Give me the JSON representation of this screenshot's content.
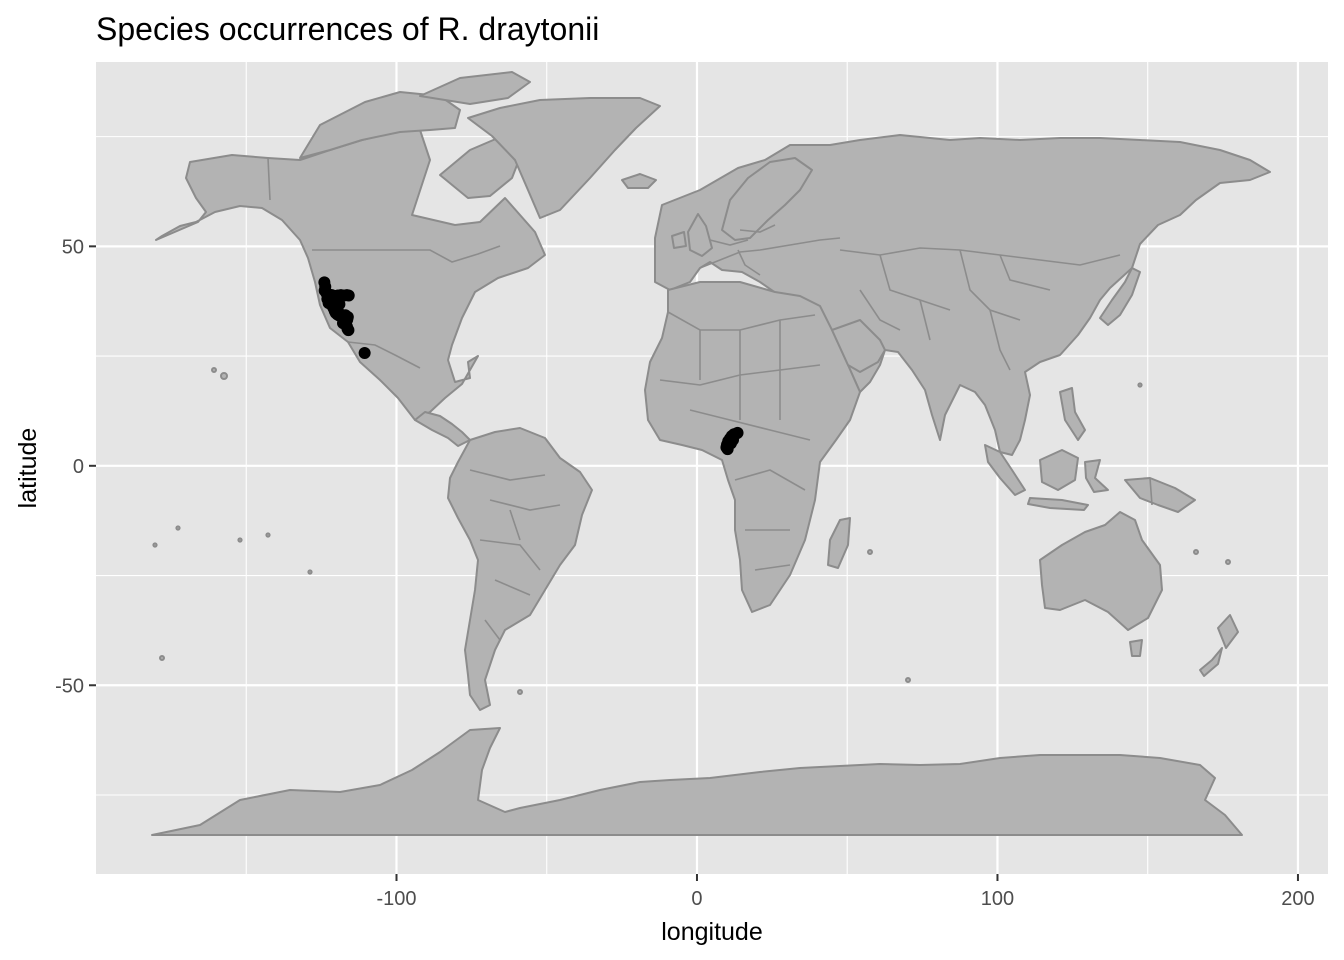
{
  "chart_data": {
    "type": "scatter",
    "title": "Species occurrences of R. draytonii",
    "xlabel": "longitude",
    "ylabel": "latitude",
    "xlim": [
      -200,
      210
    ],
    "ylim": [
      -93,
      92
    ],
    "x_ticks": [
      -100,
      0,
      100,
      200
    ],
    "x_tick_labels": [
      "-100",
      "0",
      "100",
      "200"
    ],
    "y_ticks": [
      -50,
      0,
      50
    ],
    "y_tick_labels": [
      "-50",
      "0",
      "50"
    ],
    "grid": true,
    "legend": "none",
    "background": "world-map",
    "panel_color": "#e5e5e5",
    "land_color": "#b3b3b3",
    "land_border_color": "#8c8c8c",
    "point_color": "#000000",
    "points": [
      {
        "x": -124,
        "y": 41.8
      },
      {
        "x": -123.7,
        "y": 40.8
      },
      {
        "x": -123.9,
        "y": 39.9
      },
      {
        "x": -123.3,
        "y": 39.3
      },
      {
        "x": -122.8,
        "y": 38.6
      },
      {
        "x": -122.5,
        "y": 37.9
      },
      {
        "x": -122.2,
        "y": 37.6
      },
      {
        "x": -121.9,
        "y": 37.2
      },
      {
        "x": -121.7,
        "y": 36.8
      },
      {
        "x": -121.3,
        "y": 36.4
      },
      {
        "x": -121.0,
        "y": 36.0
      },
      {
        "x": -120.7,
        "y": 35.6
      },
      {
        "x": -120.5,
        "y": 35.2
      },
      {
        "x": -120.2,
        "y": 34.8
      },
      {
        "x": -119.7,
        "y": 34.5
      },
      {
        "x": -119.2,
        "y": 34.3
      },
      {
        "x": -118.7,
        "y": 34.2
      },
      {
        "x": -118.2,
        "y": 34.0
      },
      {
        "x": -117.9,
        "y": 33.7
      },
      {
        "x": -117.6,
        "y": 33.4
      },
      {
        "x": -117.3,
        "y": 33.0
      },
      {
        "x": -117.1,
        "y": 32.6
      },
      {
        "x": -116.8,
        "y": 32.2
      },
      {
        "x": -116.5,
        "y": 31.7
      },
      {
        "x": -116.3,
        "y": 31.2
      },
      {
        "x": -116.0,
        "y": 30.9
      },
      {
        "x": -122.3,
        "y": 39.0
      },
      {
        "x": -121.8,
        "y": 38.2
      },
      {
        "x": -121.2,
        "y": 37.5
      },
      {
        "x": -120.8,
        "y": 36.9
      },
      {
        "x": -120.3,
        "y": 36.2
      },
      {
        "x": -119.8,
        "y": 35.5
      },
      {
        "x": -119.3,
        "y": 34.9
      },
      {
        "x": -118.8,
        "y": 34.6
      },
      {
        "x": -118.4,
        "y": 34.4
      },
      {
        "x": -117.5,
        "y": 34.1
      },
      {
        "x": -117.0,
        "y": 34.3
      },
      {
        "x": -116.7,
        "y": 33.8
      },
      {
        "x": -116.4,
        "y": 33.3
      },
      {
        "x": -121.5,
        "y": 38.9
      },
      {
        "x": -120.6,
        "y": 38.7
      },
      {
        "x": -119.5,
        "y": 38.8
      },
      {
        "x": -118.5,
        "y": 38.9
      },
      {
        "x": -117.5,
        "y": 38.8
      },
      {
        "x": -116.5,
        "y": 38.9
      },
      {
        "x": -115.9,
        "y": 38.8
      },
      {
        "x": -120.0,
        "y": 37.7
      },
      {
        "x": -119.0,
        "y": 36.8
      },
      {
        "x": -123.0,
        "y": 38.0
      },
      {
        "x": -122.6,
        "y": 37.1
      },
      {
        "x": -117.8,
        "y": 32.5
      },
      {
        "x": -116.2,
        "y": 33.9
      },
      {
        "x": -110.6,
        "y": 25.7
      },
      {
        "x": 10.0,
        "y": 4.8
      },
      {
        "x": 10.4,
        "y": 5.6
      },
      {
        "x": 11.0,
        "y": 6.2
      },
      {
        "x": 11.6,
        "y": 6.8
      },
      {
        "x": 12.3,
        "y": 7.2
      },
      {
        "x": 13.0,
        "y": 7.3
      },
      {
        "x": 13.5,
        "y": 7.5
      },
      {
        "x": 10.2,
        "y": 3.8
      },
      {
        "x": 11.3,
        "y": 5.1
      },
      {
        "x": 12.0,
        "y": 5.9
      },
      {
        "x": 9.8,
        "y": 4.2
      }
    ]
  }
}
